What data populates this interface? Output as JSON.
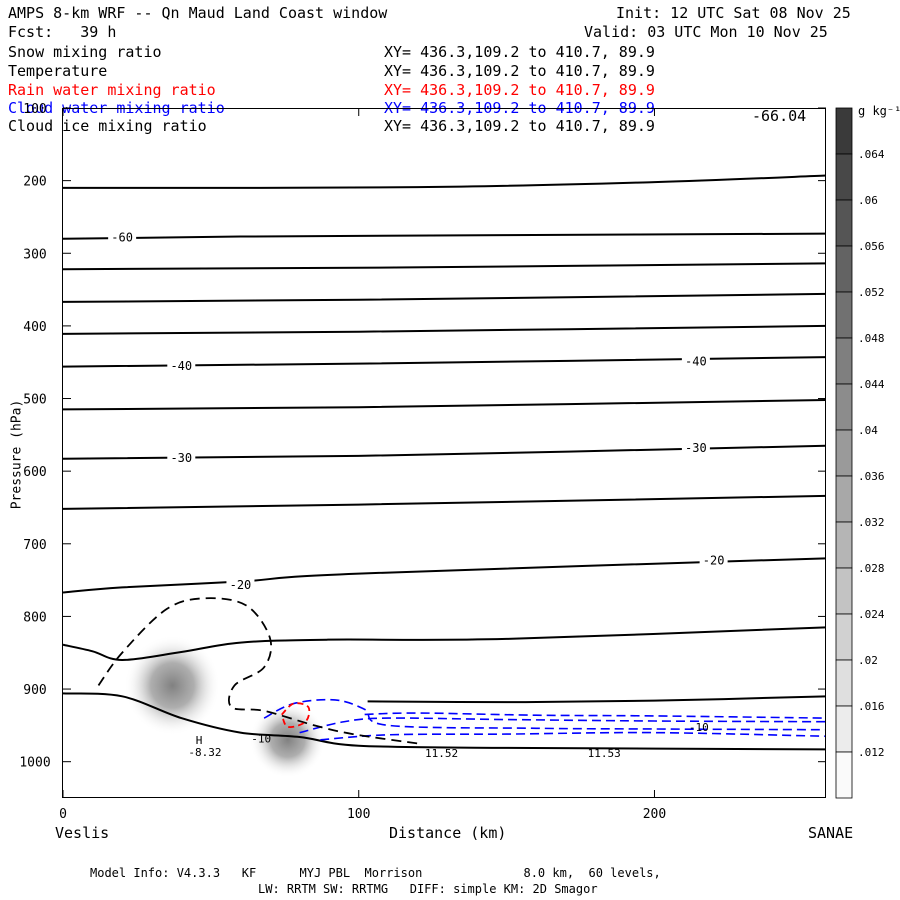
{
  "header": {
    "title": "AMPS 8-km WRF -- Qn Maud Land Coast window",
    "forecast": "Fcst:   39 h",
    "init": "Init: 12 UTC Sat 08 Nov 25",
    "valid": "Valid: 03 UTC Mon 10 Nov 25"
  },
  "fields": [
    {
      "name": "Snow mixing ratio",
      "xy": "XY= 436.3,109.2 to 410.7, 89.9",
      "color": "#000000"
    },
    {
      "name": "Temperature",
      "xy": "XY= 436.3,109.2 to 410.7, 89.9",
      "color": "#000000"
    },
    {
      "name": "Rain water mixing ratio",
      "xy": "XY= 436.3,109.2 to 410.7, 89.9",
      "color": "#ff0000"
    },
    {
      "name": "Cloud water mixing ratio",
      "xy": "XY= 436.3,109.2 to 410.7, 89.9",
      "color": "#0000ff"
    },
    {
      "name": "Cloud ice mixing ratio",
      "xy": "XY= 436.3,109.2 to 410.7, 89.9",
      "color": "#000000"
    }
  ],
  "corner_value": "-66.04",
  "colorbar": {
    "unit": "g kg⁻¹",
    "levels": [
      ".064",
      ".06",
      ".056",
      ".052",
      ".048",
      ".044",
      ".04",
      ".036",
      ".032",
      ".028",
      ".024",
      ".02",
      ".016",
      ".012"
    ]
  },
  "footer": {
    "line1": "Model Info: V4.3.3   KF      MYJ PBL  Morrison              8.0 km,  60 levels,",
    "line2": "LW: RRTM SW: RRTMG   DIFF: simple KM: 2D Smagor"
  },
  "chart_data": {
    "type": "cross-section contour",
    "title": "Snow mixing ratio / Temperature / Rain water / Cloud water / Cloud ice",
    "xlabel": "Distance (km)",
    "ylabel": "Pressure (hPa)",
    "xlim": [
      0,
      258
    ],
    "ylim": [
      100,
      1050
    ],
    "y_inverted": true,
    "x_ticks": [
      0,
      100,
      200
    ],
    "y_ticks": [
      100,
      200,
      300,
      400,
      500,
      600,
      700,
      800,
      900,
      1000
    ],
    "x_endpoint_labels": {
      "left": "Veslis",
      "right": "SANAE"
    },
    "isotherms": [
      {
        "points": [
          [
            0,
            210
          ],
          [
            120,
            209
          ],
          [
            200,
            202
          ],
          [
            258,
            193
          ]
        ]
      },
      {
        "points": [
          [
            0,
            280
          ],
          [
            60,
            277
          ],
          [
            150,
            275
          ],
          [
            258,
            273
          ]
        ],
        "label": "-60",
        "label_at": [
          20,
          278
        ]
      },
      {
        "points": [
          [
            0,
            322
          ],
          [
            100,
            320
          ],
          [
            258,
            314
          ]
        ]
      },
      {
        "points": [
          [
            0,
            367
          ],
          [
            100,
            364
          ],
          [
            258,
            356
          ]
        ]
      },
      {
        "points": [
          [
            0,
            411
          ],
          [
            100,
            408
          ],
          [
            258,
            400
          ]
        ]
      },
      {
        "points": [
          [
            0,
            456
          ],
          [
            100,
            452
          ],
          [
            258,
            443
          ]
        ],
        "label": "-40",
        "label_at": [
          40,
          455
        ],
        "label2": "-40",
        "label2_at": [
          214,
          449
        ]
      },
      {
        "points": [
          [
            0,
            515
          ],
          [
            100,
            512
          ],
          [
            258,
            502
          ]
        ]
      },
      {
        "points": [
          [
            0,
            583
          ],
          [
            100,
            579
          ],
          [
            258,
            565
          ]
        ],
        "label": "-30",
        "label_at": [
          40,
          582
        ],
        "label2": "-30",
        "label2_at": [
          214,
          568
        ]
      },
      {
        "points": [
          [
            0,
            652
          ],
          [
            100,
            646
          ],
          [
            258,
            634
          ]
        ]
      },
      {
        "points": [
          [
            0,
            767
          ],
          [
            20,
            760
          ],
          [
            60,
            752
          ],
          [
            100,
            741
          ],
          [
            258,
            720
          ]
        ],
        "label": "-20",
        "label_at": [
          60,
          757
        ],
        "label2": "-20",
        "label2_at": [
          220,
          723
        ]
      },
      {
        "points": [
          [
            0,
            839
          ],
          [
            10,
            848
          ],
          [
            20,
            860
          ],
          [
            40,
            849
          ],
          [
            60,
            836
          ],
          [
            90,
            832
          ],
          [
            150,
            831
          ],
          [
            258,
            815
          ]
        ]
      },
      {
        "points": [
          [
            0,
            906
          ],
          [
            20,
            910
          ],
          [
            40,
            940
          ],
          [
            60,
            960
          ],
          [
            80,
            966
          ],
          [
            100,
            978
          ],
          [
            150,
            981
          ],
          [
            258,
            983
          ]
        ]
      },
      {
        "points": [
          [
            103,
            917
          ],
          [
            150,
            918
          ],
          [
            200,
            916
          ],
          [
            258,
            910
          ]
        ]
      }
    ],
    "contour_labels": [
      {
        "text": "-10",
        "x": 67,
        "y": 968
      },
      {
        "text": "H",
        "x": 46,
        "y": 970
      },
      {
        "text": "-8.32",
        "x": 48,
        "y": 987
      },
      {
        "text": "11.52",
        "x": 128,
        "y": 988
      },
      {
        "text": "11.53",
        "x": 183,
        "y": 988
      },
      {
        "text": "-10",
        "x": 215,
        "y": 952
      }
    ],
    "snow_max_regions": [
      {
        "x": 37,
        "p": 895,
        "peak": 0.04
      },
      {
        "x": 76,
        "p": 970,
        "peak": 0.044
      }
    ],
    "cloud_ice_contour": {
      "points": [
        [
          12,
          895
        ],
        [
          20,
          850
        ],
        [
          35,
          790
        ],
        [
          48,
          775
        ],
        [
          62,
          785
        ],
        [
          70,
          830
        ],
        [
          68,
          870
        ],
        [
          58,
          895
        ],
        [
          57,
          925
        ],
        [
          68,
          930
        ],
        [
          85,
          950
        ],
        [
          98,
          962
        ],
        [
          120,
          975
        ]
      ]
    },
    "rain_contour": {
      "points": [
        [
          74,
          935
        ],
        [
          78,
          920
        ],
        [
          83,
          925
        ],
        [
          82,
          945
        ],
        [
          76,
          952
        ],
        [
          74,
          935
        ]
      ]
    },
    "cloud_water_levels": [
      {
        "points": [
          [
            68,
            940
          ],
          [
            78,
            920
          ],
          [
            92,
            915
          ],
          [
            102,
            928
          ],
          [
            110,
            950
          ],
          [
            160,
            954
          ],
          [
            200,
            955
          ],
          [
            258,
            956
          ]
        ]
      },
      {
        "points": [
          [
            80,
            960
          ],
          [
            95,
            945
          ],
          [
            110,
            940
          ],
          [
            150,
            942
          ],
          [
            200,
            944
          ],
          [
            258,
            945
          ]
        ]
      },
      {
        "points": [
          [
            87,
            970
          ],
          [
            110,
            963
          ],
          [
            150,
            962
          ],
          [
            200,
            960
          ],
          [
            258,
            965
          ]
        ]
      },
      {
        "points": [
          [
            102,
            935
          ],
          [
            120,
            933
          ],
          [
            160,
            936
          ],
          [
            200,
            937
          ],
          [
            258,
            940
          ]
        ]
      }
    ]
  }
}
